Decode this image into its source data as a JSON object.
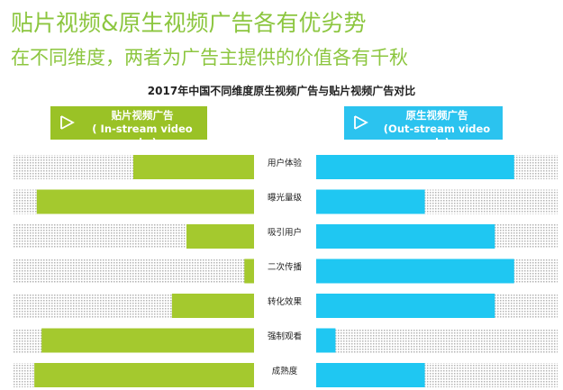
{
  "headline": "贴片视频&原生视频广告各有优劣势",
  "subhead": "在不同维度，两者为广告主提供的价值各有千秋",
  "chart_data": {
    "type": "bar",
    "title": "2017年中国不同维度原生视频广告与贴片视频广告对比",
    "categories": [
      "用户体验",
      "曝光量级",
      "吸引用户",
      "二次传播",
      "转化效果",
      "强制观看",
      "成熟度"
    ],
    "scale": [
      0,
      10
    ],
    "series": [
      {
        "name_line1": "贴片视频广告",
        "name_line2": "( In-stream video ads )",
        "color": "#a4c92e",
        "direction": "left",
        "values": [
          5,
          9,
          2.8,
          0.4,
          3.4,
          8.8,
          9.1
        ]
      },
      {
        "name_line1": "原生视频广告",
        "name_line2": "(Out-stream video ads)",
        "color": "#1fc7f2",
        "direction": "right",
        "values": [
          8.2,
          4.5,
          7.4,
          8.2,
          7.4,
          0.8,
          4.5
        ]
      }
    ],
    "track_color": "#d9d9d9",
    "grid": false
  }
}
